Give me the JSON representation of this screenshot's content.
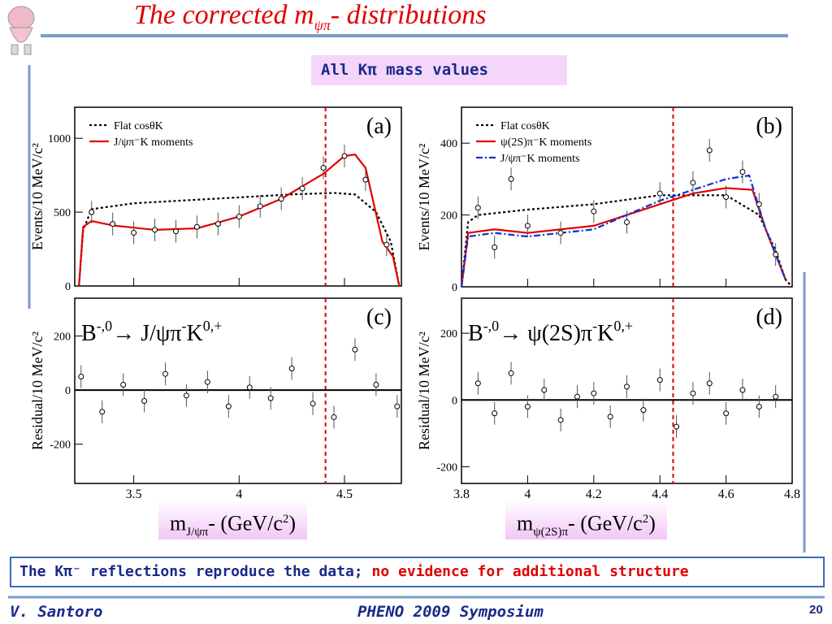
{
  "title": {
    "main": "The corrected m",
    "sub": "ψπ",
    "rest": "- distributions"
  },
  "banner": "All Kπ mass values",
  "xaxis_labels": [
    {
      "m": "m",
      "sub": "J/ψπ",
      "rest": "- (GeV/c",
      "sup": "2",
      "end": ")"
    },
    {
      "m": "m",
      "sub": "ψ(2S)π",
      "rest": "- (GeV/c",
      "sup": "2",
      "end": ")"
    }
  ],
  "conclusion": {
    "black": "The Kπ⁻ reflections reproduce the data;",
    "red": "no evidence for additional structure"
  },
  "footer": {
    "author": "V. Santoro",
    "event": "PHENO 2009 Symposium",
    "page": "20"
  },
  "chart_data": [
    {
      "type": "line",
      "label": "(a)",
      "ylabel": "Events/10 MeV/c²",
      "xlim": [
        3.22,
        4.77
      ],
      "ylim": [
        0,
        1210
      ],
      "xticks": [
        3.5,
        4,
        4.5
      ],
      "yticks": [
        0,
        500,
        1000
      ],
      "xtick_labels": false,
      "vline": 4.41,
      "legend": "top-left",
      "series": [
        {
          "name": "Flat cosθK",
          "color": "#000000",
          "style": "dotted",
          "x": [
            3.24,
            3.26,
            3.3,
            3.4,
            3.5,
            3.75,
            4.0,
            4.25,
            4.45,
            4.55,
            4.65,
            4.72,
            4.76
          ],
          "values": [
            0,
            380,
            520,
            540,
            560,
            580,
            600,
            620,
            630,
            620,
            500,
            300,
            0
          ]
        },
        {
          "name": "J/ψπ⁻K moments",
          "color": "#e00000",
          "style": "solid",
          "x": [
            3.24,
            3.26,
            3.3,
            3.4,
            3.6,
            3.8,
            4.0,
            4.2,
            4.4,
            4.5,
            4.55,
            4.6,
            4.68,
            4.73,
            4.76
          ],
          "values": [
            0,
            400,
            440,
            410,
            380,
            390,
            470,
            590,
            760,
            880,
            890,
            800,
            300,
            200,
            0
          ]
        }
      ],
      "x": [
        3.3,
        3.4,
        3.5,
        3.6,
        3.7,
        3.8,
        3.9,
        4.0,
        4.1,
        4.2,
        4.3,
        4.4,
        4.5,
        4.6,
        4.7
      ],
      "values": [
        500,
        420,
        360,
        380,
        370,
        400,
        420,
        470,
        540,
        590,
        660,
        800,
        880,
        720,
        280
      ]
    },
    {
      "type": "line",
      "label": "(b)",
      "ylabel": "Events/10 MeV/c²",
      "xlim": [
        3.8,
        4.8
      ],
      "ylim": [
        0,
        500
      ],
      "xticks": [
        3.8,
        4,
        4.2,
        4.4,
        4.6,
        4.8
      ],
      "yticks": [
        0,
        200,
        400
      ],
      "xtick_labels": false,
      "vline": 4.44,
      "legend": "top-left",
      "series": [
        {
          "name": "Flat cosθK",
          "color": "#000000",
          "style": "dotted",
          "x": [
            3.8,
            3.82,
            3.85,
            4.0,
            4.2,
            4.4,
            4.6,
            4.7,
            4.75,
            4.78,
            4.8
          ],
          "values": [
            0,
            180,
            200,
            215,
            230,
            255,
            255,
            200,
            100,
            20,
            0
          ]
        },
        {
          "name": "ψ(2S)π⁻K moments",
          "color": "#e00000",
          "style": "solid",
          "x": [
            3.8,
            3.82,
            3.9,
            4.0,
            4.2,
            4.4,
            4.5,
            4.6,
            4.68,
            4.72,
            4.78
          ],
          "values": [
            0,
            150,
            160,
            150,
            170,
            230,
            260,
            275,
            270,
            160,
            20
          ]
        },
        {
          "name": "J/ψπ⁻K moments",
          "color": "#1030d0",
          "style": "dashdot",
          "x": [
            3.8,
            3.82,
            3.9,
            4.0,
            4.2,
            4.4,
            4.5,
            4.6,
            4.67,
            4.72,
            4.78
          ],
          "values": [
            0,
            140,
            150,
            140,
            160,
            240,
            270,
            300,
            310,
            160,
            20
          ]
        }
      ],
      "x": [
        3.85,
        3.9,
        3.95,
        4.0,
        4.1,
        4.2,
        4.3,
        4.4,
        4.5,
        4.55,
        4.6,
        4.65,
        4.7,
        4.75
      ],
      "values": [
        220,
        110,
        300,
        170,
        150,
        210,
        180,
        260,
        290,
        380,
        250,
        320,
        230,
        90
      ]
    },
    {
      "type": "scatter",
      "label": "(c)",
      "ylabel": "Residual/10 MeV/c²",
      "reaction": [
        {
          "text": "B",
          "sup": "-,0"
        },
        {
          "text": "→ J/ψπ",
          "sup": "-"
        },
        {
          "text": "K",
          "sup": "0,+"
        }
      ],
      "xlim": [
        3.22,
        4.77
      ],
      "ylim": [
        -345,
        340
      ],
      "xticks": [
        3.5,
        4,
        4.5
      ],
      "yticks": [
        -200,
        0,
        200
      ],
      "xtick_labels": true,
      "vline": 4.41,
      "x": [
        3.25,
        3.35,
        3.45,
        3.55,
        3.65,
        3.75,
        3.85,
        3.95,
        4.05,
        4.15,
        4.25,
        4.35,
        4.45,
        4.55,
        4.65,
        4.75
      ],
      "values": [
        50,
        -80,
        20,
        -40,
        60,
        -20,
        30,
        -60,
        10,
        -30,
        80,
        -50,
        -100,
        150,
        20,
        -60
      ]
    },
    {
      "type": "scatter",
      "label": "(d)",
      "ylabel": "Residual/10 MeV/c²",
      "reaction": [
        {
          "text": "B",
          "sup": "-,0"
        },
        {
          "text": "→ ψ(2S)π",
          "sup": "-"
        },
        {
          "text": "K",
          "sup": "0,+"
        }
      ],
      "xlim": [
        3.8,
        4.8
      ],
      "ylim": [
        -250,
        305
      ],
      "xticks": [
        3.8,
        4,
        4.2,
        4.4,
        4.6,
        4.8
      ],
      "yticks": [
        -200,
        0,
        200
      ],
      "xtick_labels": true,
      "vline": 4.44,
      "x": [
        3.85,
        3.9,
        3.95,
        4.0,
        4.05,
        4.1,
        4.15,
        4.2,
        4.25,
        4.3,
        4.35,
        4.4,
        4.45,
        4.5,
        4.55,
        4.6,
        4.65,
        4.7,
        4.75
      ],
      "values": [
        50,
        -40,
        80,
        -20,
        30,
        -60,
        10,
        20,
        -50,
        40,
        -30,
        60,
        -80,
        20,
        50,
        -40,
        30,
        -20,
        10
      ]
    }
  ]
}
